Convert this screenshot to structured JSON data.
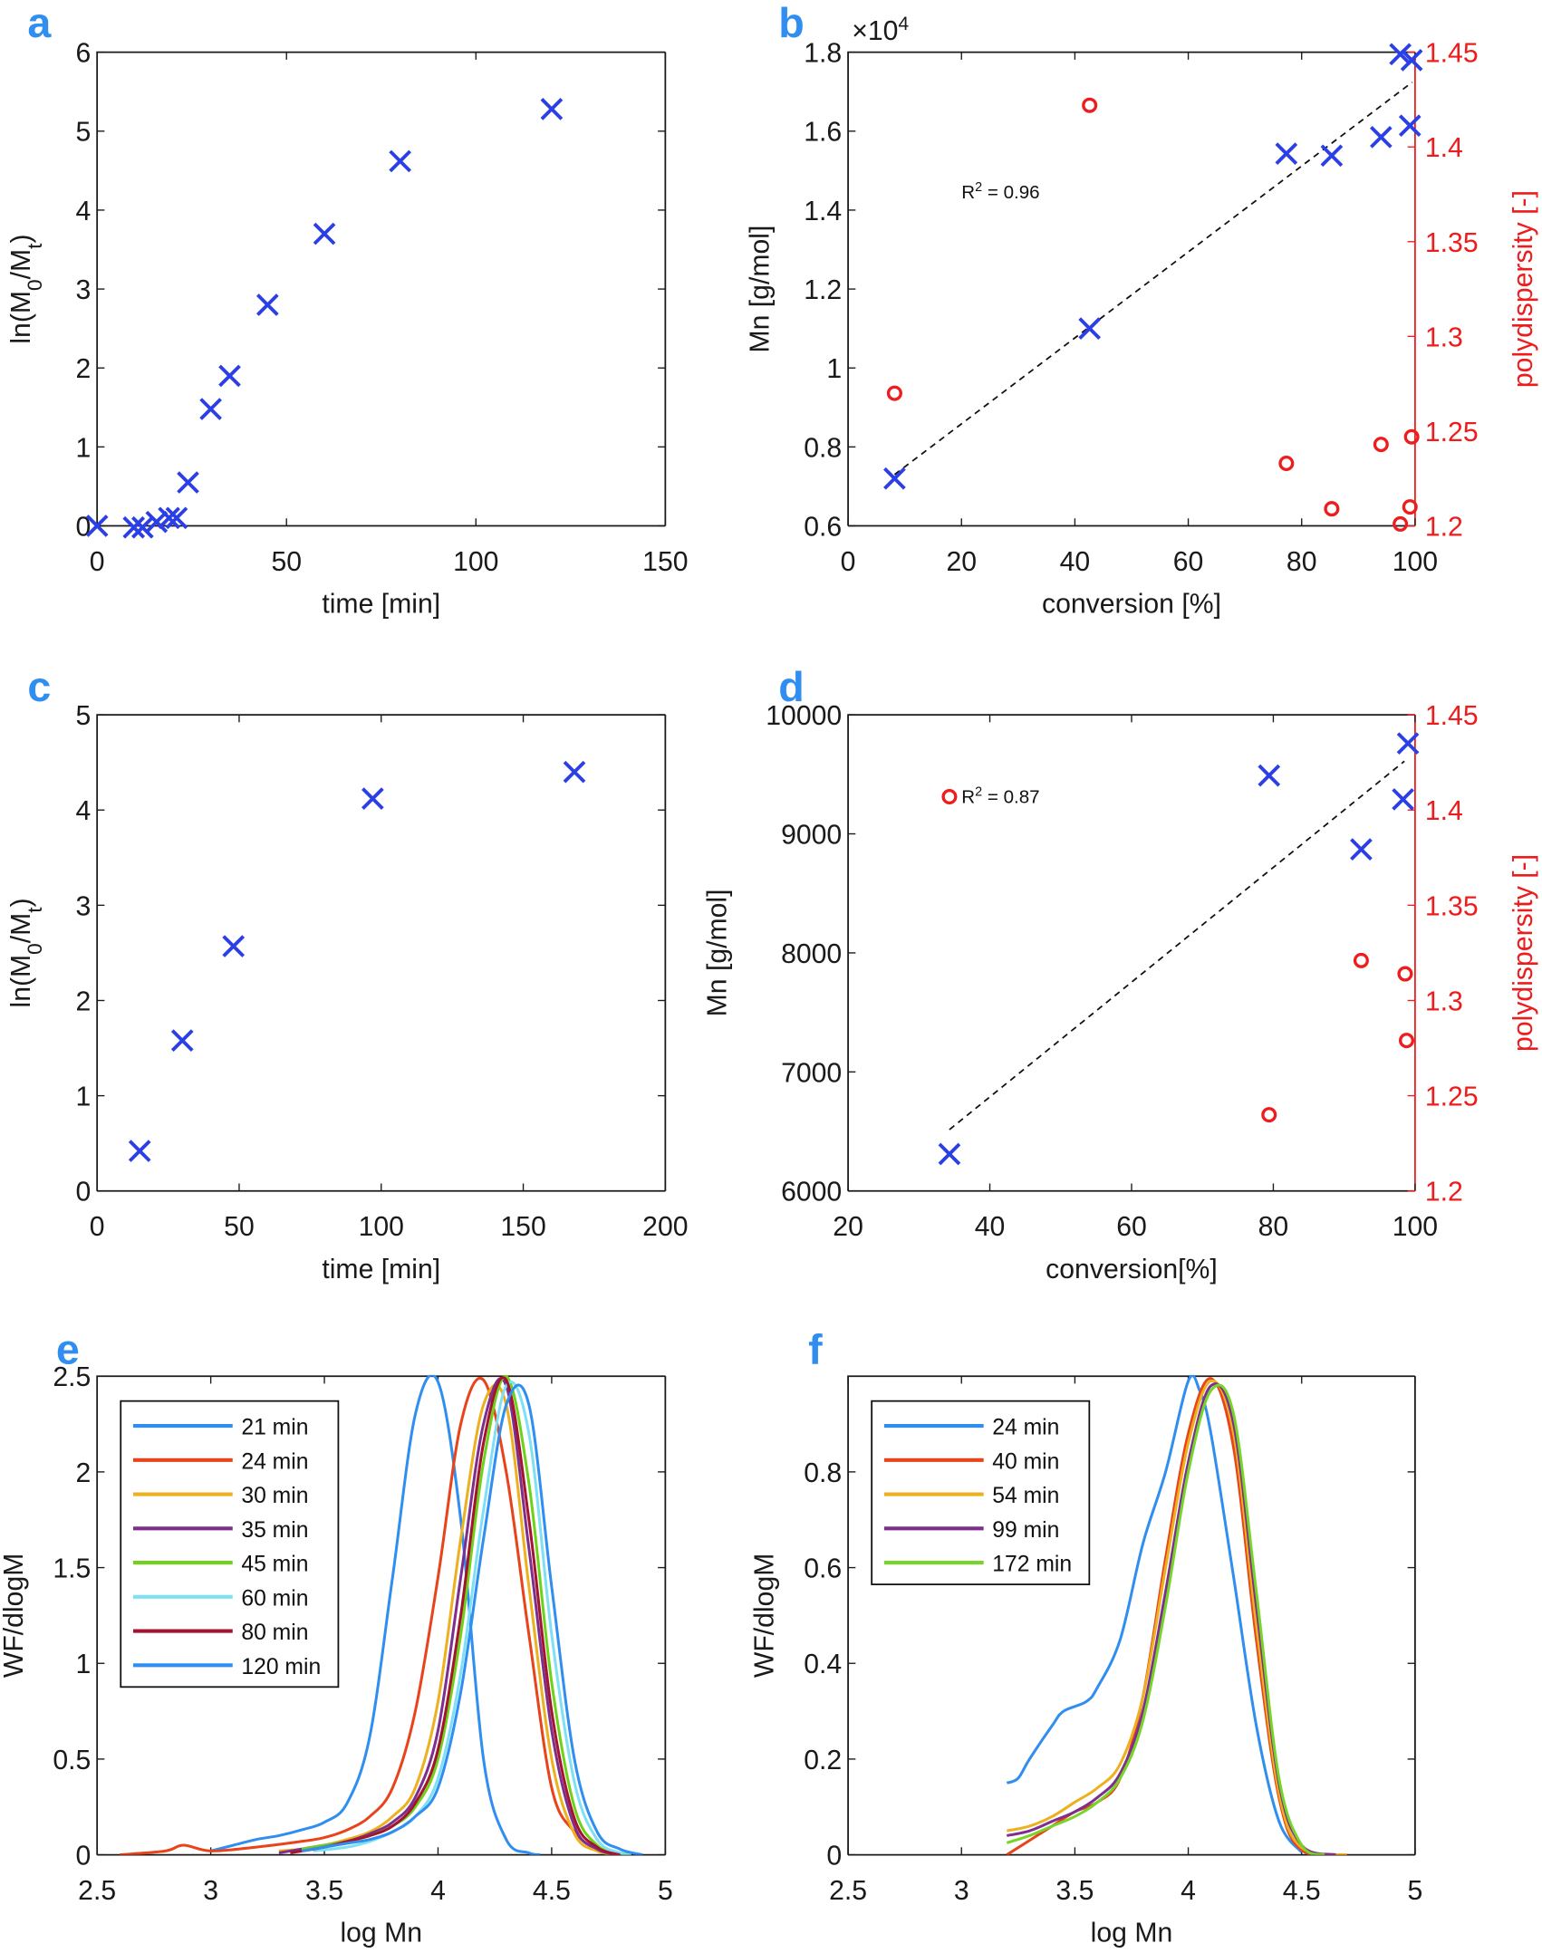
{
  "colors": {
    "cross": "#2b3fe6",
    "circle": "#ee1c1c",
    "axis": "#1a1a1a",
    "right_axis": "#ee1c1c",
    "panel_letter": "#2f8ef0"
  },
  "chart_data": [
    {
      "panel": "a",
      "type": "scatter",
      "xlabel": [
        {
          "t": "time [min]"
        }
      ],
      "ylabel": [
        {
          "t": "ln(M"
        },
        {
          "t": "0",
          "sub": true
        },
        {
          "t": "/M"
        },
        {
          "t": "t",
          "sub": true
        },
        {
          "t": ")"
        }
      ],
      "xlim": [
        0,
        150
      ],
      "ylim": [
        0,
        6
      ],
      "xticks": [
        0,
        50,
        100,
        150
      ],
      "yticks": [
        0,
        1,
        2,
        3,
        4,
        5,
        6
      ],
      "series": [
        {
          "marker": "x",
          "axis": "left",
          "x": [
            0,
            9.7,
            12,
            15.7,
            19,
            21,
            24,
            30,
            35,
            45,
            60,
            80,
            120
          ],
          "y": [
            0,
            -0.02,
            -0.02,
            0.05,
            0.1,
            0.1,
            0.55,
            1.48,
            1.9,
            2.8,
            3.7,
            4.62,
            5.28
          ]
        }
      ]
    },
    {
      "panel": "b",
      "type": "scatter",
      "xlabel": [
        {
          "t": "conversion [%]"
        }
      ],
      "ylabel": [
        {
          "t": "Mn [g/mol]"
        }
      ],
      "ylabel_right": [
        {
          "t": "polydispersity [-]"
        }
      ],
      "exponent_label": [
        {
          "t": "×10"
        },
        {
          "t": "4",
          "sup": true
        }
      ],
      "xlim": [
        0,
        100
      ],
      "ylim": [
        0.6,
        1.8
      ],
      "ylim_right": [
        1.2,
        1.45
      ],
      "xticks": [
        0,
        20,
        40,
        60,
        80,
        100
      ],
      "yticks": [
        0.6,
        0.8,
        1,
        1.2,
        1.4,
        1.6,
        1.8
      ],
      "yticks_right": [
        1.2,
        1.25,
        1.3,
        1.35,
        1.4,
        1.45
      ],
      "annotation": [
        {
          "t": "R"
        },
        {
          "t": "2",
          "sup": true
        },
        {
          "t": " = 0.96"
        }
      ],
      "annotation_at": [
        20,
        1.43
      ],
      "trendline": {
        "x": [
          8.2,
          99.5
        ],
        "y": [
          0.73,
          1.724
        ]
      },
      "series": [
        {
          "marker": "x",
          "axis": "left",
          "x": [
            8.2,
            42.6,
            77.3,
            85.3,
            94,
            97.4,
            99.4,
            99.1
          ],
          "y": [
            0.72,
            1.1,
            1.543,
            1.538,
            1.585,
            1.795,
            1.78,
            1.614
          ]
        },
        {
          "marker": "o",
          "axis": "right",
          "x": [
            8.2,
            42.6,
            77.3,
            85.3,
            94,
            97.4,
            99.1,
            99.4
          ],
          "y": [
            1.27,
            1.422,
            1.233,
            1.209,
            1.243,
            1.201,
            1.21,
            1.247
          ]
        }
      ]
    },
    {
      "panel": "c",
      "type": "scatter",
      "xlabel": [
        {
          "t": "time [min]"
        }
      ],
      "ylabel": [
        {
          "t": "ln(M"
        },
        {
          "t": "0",
          "sub": true
        },
        {
          "t": "/M"
        },
        {
          "t": "t",
          "sub": true
        },
        {
          "t": ")"
        }
      ],
      "xlim": [
        0,
        200
      ],
      "ylim": [
        0,
        5
      ],
      "xticks": [
        0,
        50,
        100,
        150,
        200
      ],
      "yticks": [
        0,
        1,
        2,
        3,
        4,
        5
      ],
      "series": [
        {
          "marker": "x",
          "axis": "left",
          "x": [
            15,
            30,
            48,
            97,
            168
          ],
          "y": [
            0.42,
            1.58,
            2.57,
            4.12,
            4.4
          ]
        }
      ]
    },
    {
      "panel": "d",
      "type": "scatter",
      "xlabel": [
        {
          "t": "conversion[%]"
        }
      ],
      "ylabel": [
        {
          "t": "Mn [g/mol]"
        }
      ],
      "ylabel_right": [
        {
          "t": "polydispersity [-]"
        }
      ],
      "xlim": [
        20,
        100
      ],
      "ylim": [
        6000,
        10000
      ],
      "ylim_right": [
        1.2,
        1.45
      ],
      "xticks": [
        20,
        40,
        60,
        80,
        100
      ],
      "yticks": [
        6000,
        7000,
        8000,
        9000,
        10000
      ],
      "yticks_right": [
        1.2,
        1.25,
        1.3,
        1.35,
        1.4,
        1.45
      ],
      "annotation": [
        {
          "t": "R"
        },
        {
          "t": "2",
          "sup": true
        },
        {
          "t": " = 0.87"
        }
      ],
      "annotation_at": [
        36,
        9260
      ],
      "trendline": {
        "x": [
          34.3,
          98.5
        ],
        "y": [
          6515,
          9610
        ]
      },
      "series": [
        {
          "marker": "x",
          "axis": "left",
          "x": [
            34.3,
            79.4,
            92.4,
            98.3,
            99
          ],
          "y": [
            6310,
            9490,
            8870,
            9290,
            9760
          ]
        },
        {
          "marker": "o",
          "axis": "right",
          "x": [
            34.3,
            79.4,
            92.4,
            98.6,
            98.8
          ],
          "y": [
            1.407,
            1.24,
            1.321,
            1.314,
            1.279
          ]
        }
      ]
    },
    {
      "panel": "e",
      "type": "line",
      "xlabel": [
        {
          "t": "log Mn"
        }
      ],
      "ylabel": [
        {
          "t": "WF/dlogM"
        }
      ],
      "xlim": [
        2.5,
        5
      ],
      "ylim": [
        0,
        2.5
      ],
      "xticks": [
        2.5,
        3,
        3.5,
        4,
        4.5,
        5
      ],
      "yticks": [
        0,
        0.5,
        1,
        1.5,
        2,
        2.5
      ],
      "legend": "top-left",
      "series": [
        {
          "name": "21 min",
          "color": "#2f8ef0",
          "x": [
            3.0,
            3.1,
            3.2,
            3.3,
            3.4,
            3.5,
            3.6,
            3.7,
            3.8,
            3.9,
            4.0,
            4.1,
            4.2,
            4.3,
            4.4,
            4.45
          ],
          "y": [
            0.02,
            0.05,
            0.08,
            0.1,
            0.13,
            0.17,
            0.27,
            0.62,
            1.45,
            2.3,
            2.47,
            1.75,
            0.5,
            0.08,
            0.01,
            0
          ]
        },
        {
          "name": "24 min",
          "color": "#e8431a",
          "x": [
            2.6,
            2.8,
            2.88,
            3.0,
            3.2,
            3.4,
            3.5,
            3.6,
            3.7,
            3.8,
            3.9,
            4.0,
            4.1,
            4.2,
            4.3,
            4.4,
            4.5,
            4.6,
            4.7,
            4.8
          ],
          "y": [
            0,
            0.02,
            0.05,
            0.02,
            0.04,
            0.07,
            0.09,
            0.13,
            0.2,
            0.35,
            0.75,
            1.45,
            2.25,
            2.48,
            2.0,
            1.15,
            0.35,
            0.12,
            0.03,
            0
          ]
        },
        {
          "name": "30 min",
          "color": "#edb120",
          "x": [
            3.3,
            3.4,
            3.5,
            3.6,
            3.7,
            3.8,
            3.9,
            4.0,
            4.1,
            4.2,
            4.3,
            4.4,
            4.5,
            4.6,
            4.7,
            4.8
          ],
          "y": [
            0.02,
            0.03,
            0.05,
            0.08,
            0.12,
            0.2,
            0.35,
            0.8,
            1.65,
            2.35,
            2.35,
            1.4,
            0.5,
            0.11,
            0.02,
            0
          ]
        },
        {
          "name": "35 min",
          "color": "#7e2f8e",
          "x": [
            3.3,
            3.4,
            3.5,
            3.6,
            3.7,
            3.8,
            3.9,
            4.0,
            4.1,
            4.2,
            4.3,
            4.4,
            4.5,
            4.6,
            4.7,
            4.8
          ],
          "y": [
            0.01,
            0.03,
            0.05,
            0.07,
            0.11,
            0.17,
            0.3,
            0.65,
            1.45,
            2.25,
            2.45,
            1.6,
            0.65,
            0.15,
            0.03,
            0
          ]
        },
        {
          "name": "45 min",
          "color": "#6fd21a",
          "x": [
            3.4,
            3.5,
            3.6,
            3.7,
            3.8,
            3.9,
            4.0,
            4.1,
            4.2,
            4.3,
            4.4,
            4.5,
            4.6,
            4.7,
            4.8,
            4.85
          ],
          "y": [
            0.03,
            0.05,
            0.07,
            0.1,
            0.15,
            0.25,
            0.5,
            1.15,
            2.05,
            2.5,
            1.94,
            0.9,
            0.25,
            0.05,
            0.01,
            0
          ]
        },
        {
          "name": "60 min",
          "color": "#7fe0f5",
          "x": [
            3.45,
            3.6,
            3.7,
            3.8,
            3.9,
            4.0,
            4.1,
            4.2,
            4.3,
            4.4,
            4.5,
            4.6,
            4.7,
            4.8,
            4.85
          ],
          "y": [
            0.02,
            0.04,
            0.07,
            0.12,
            0.2,
            0.4,
            0.95,
            1.8,
            2.45,
            2.2,
            1.15,
            0.38,
            0.08,
            0.01,
            0
          ]
        },
        {
          "name": "80 min",
          "color": "#a2142f",
          "x": [
            3.35,
            3.5,
            3.6,
            3.7,
            3.8,
            3.9,
            4.0,
            4.1,
            4.2,
            4.3,
            4.4,
            4.5,
            4.6,
            4.7,
            4.8
          ],
          "y": [
            0.01,
            0.04,
            0.07,
            0.1,
            0.15,
            0.27,
            0.55,
            1.25,
            2.15,
            2.48,
            1.75,
            0.75,
            0.19,
            0.04,
            0
          ]
        },
        {
          "name": "120 min",
          "color": "#2f8ef0",
          "x": [
            3.4,
            3.5,
            3.6,
            3.7,
            3.8,
            3.9,
            4.0,
            4.1,
            4.2,
            4.3,
            4.4,
            4.5,
            4.6,
            4.7,
            4.8,
            4.9
          ],
          "y": [
            0.02,
            0.04,
            0.06,
            0.08,
            0.12,
            0.2,
            0.35,
            0.85,
            1.65,
            2.35,
            2.35,
            1.4,
            0.5,
            0.12,
            0.03,
            0
          ]
        }
      ]
    },
    {
      "panel": "f",
      "type": "line",
      "xlabel": [
        {
          "t": "log Mn"
        }
      ],
      "ylabel": [
        {
          "t": "WF/dlogM"
        }
      ],
      "xlim": [
        2.5,
        5
      ],
      "ylim": [
        0,
        1
      ],
      "xticks": [
        2.5,
        3,
        3.5,
        4,
        4.5,
        5
      ],
      "yticks": [
        0,
        0.2,
        0.4,
        0.6,
        0.8
      ],
      "legend": "top-left",
      "series": [
        {
          "name": "24 min",
          "color": "#2f8ef0",
          "x": [
            3.2,
            3.25,
            3.3,
            3.4,
            3.45,
            3.55,
            3.6,
            3.7,
            3.8,
            3.9,
            4.0,
            4.05,
            4.1,
            4.2,
            4.3,
            4.4,
            4.5
          ],
          "y": [
            0.15,
            0.16,
            0.2,
            0.27,
            0.3,
            0.32,
            0.35,
            0.45,
            0.65,
            0.8,
            0.99,
            0.97,
            0.88,
            0.58,
            0.27,
            0.07,
            0.005
          ]
        },
        {
          "name": "40 min",
          "color": "#e8431a",
          "x": [
            3.2,
            3.3,
            3.4,
            3.5,
            3.6,
            3.7,
            3.8,
            3.9,
            4.0,
            4.1,
            4.2,
            4.3,
            4.4,
            4.5,
            4.7
          ],
          "y": [
            0,
            0.03,
            0.06,
            0.09,
            0.11,
            0.16,
            0.33,
            0.62,
            0.88,
            0.995,
            0.85,
            0.45,
            0.12,
            0.01,
            0
          ]
        },
        {
          "name": "54 min",
          "color": "#edb120",
          "x": [
            3.2,
            3.3,
            3.4,
            3.5,
            3.6,
            3.7,
            3.8,
            3.9,
            4.0,
            4.1,
            4.2,
            4.3,
            4.4,
            4.5,
            4.7
          ],
          "y": [
            0.05,
            0.06,
            0.08,
            0.11,
            0.14,
            0.19,
            0.33,
            0.6,
            0.86,
            0.99,
            0.88,
            0.48,
            0.13,
            0.015,
            0
          ]
        },
        {
          "name": "99 min",
          "color": "#7e2f8e",
          "x": [
            3.2,
            3.3,
            3.4,
            3.5,
            3.6,
            3.7,
            3.8,
            3.9,
            4.0,
            4.1,
            4.2,
            4.3,
            4.4,
            4.5,
            4.65
          ],
          "y": [
            0.04,
            0.05,
            0.07,
            0.09,
            0.12,
            0.17,
            0.3,
            0.55,
            0.82,
            0.98,
            0.9,
            0.52,
            0.15,
            0.02,
            0
          ]
        },
        {
          "name": "172 min",
          "color": "#77d52a",
          "x": [
            3.2,
            3.3,
            3.4,
            3.5,
            3.6,
            3.7,
            3.8,
            3.9,
            4.0,
            4.1,
            4.2,
            4.3,
            4.4,
            4.5,
            4.6
          ],
          "y": [
            0.025,
            0.04,
            0.06,
            0.08,
            0.11,
            0.16,
            0.28,
            0.52,
            0.8,
            0.97,
            0.92,
            0.55,
            0.16,
            0.02,
            0
          ]
        }
      ]
    }
  ]
}
